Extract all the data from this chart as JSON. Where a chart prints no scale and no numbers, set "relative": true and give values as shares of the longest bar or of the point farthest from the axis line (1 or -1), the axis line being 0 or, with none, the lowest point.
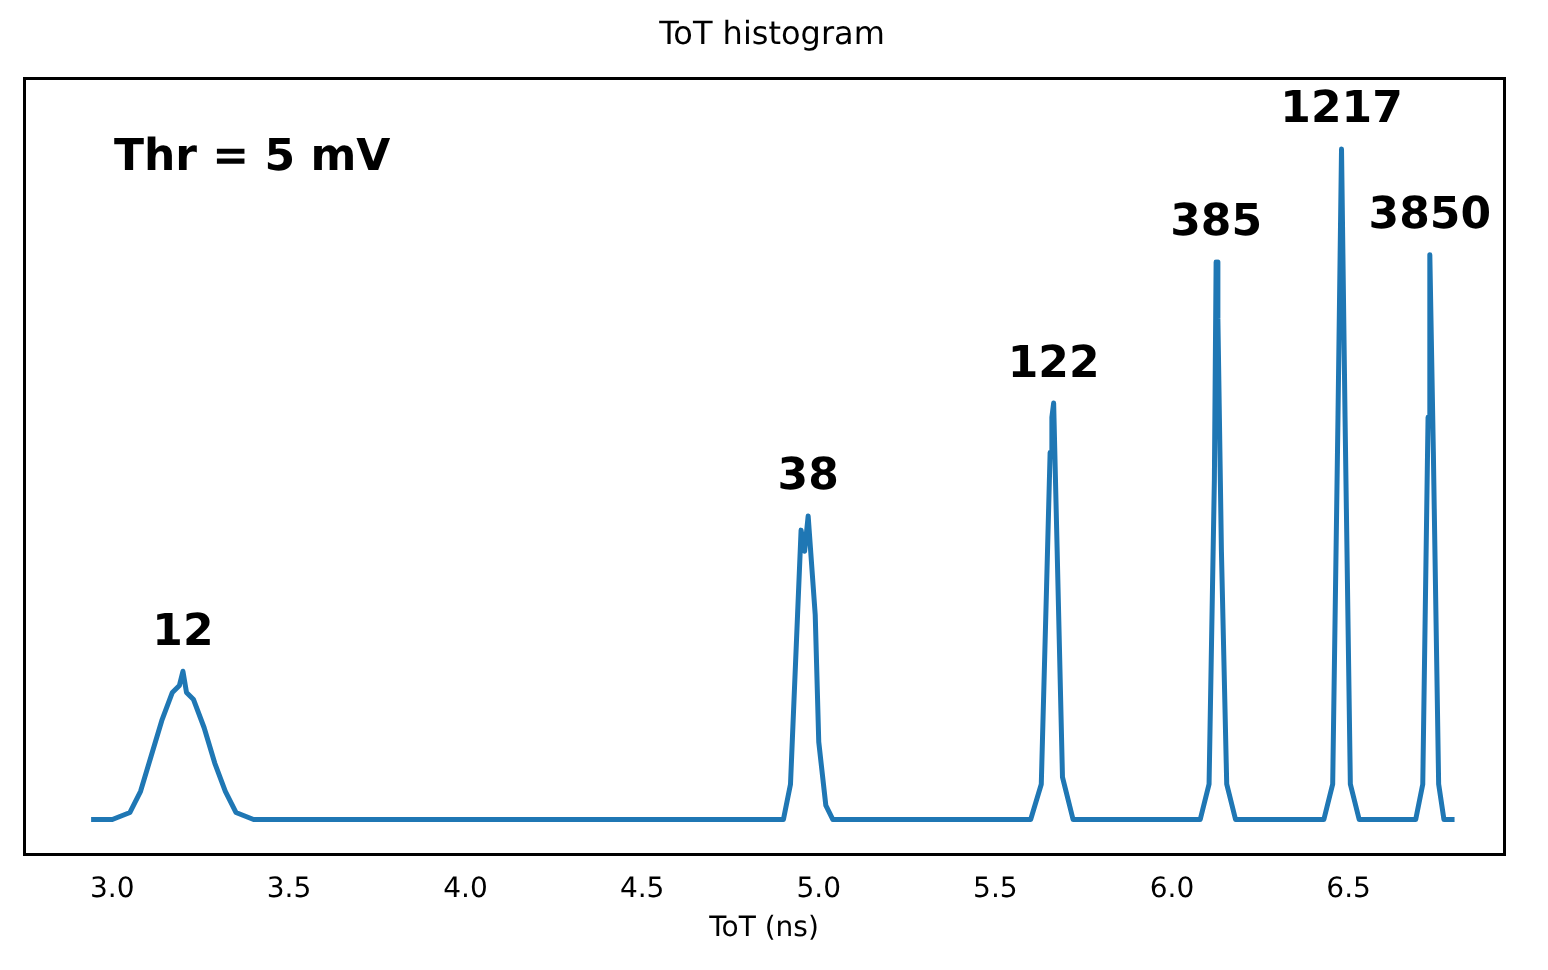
{
  "chart_data": {
    "type": "line",
    "title": "ToT histogram",
    "xlabel": "ToT (ns)",
    "relative": true,
    "color": "#1f77b4",
    "marker": "none",
    "grid": false,
    "legend": false,
    "x": [
      2.94,
      3.0,
      3.05,
      3.08,
      3.11,
      3.14,
      3.17,
      3.19,
      3.2,
      3.21,
      3.23,
      3.26,
      3.29,
      3.32,
      3.35,
      3.4,
      4.9,
      4.92,
      4.94,
      4.95,
      4.96,
      4.97,
      4.98,
      4.99,
      5.0,
      5.02,
      5.04,
      5.6,
      5.63,
      5.645,
      5.655,
      5.66,
      5.665,
      5.675,
      5.69,
      5.72,
      6.08,
      6.105,
      6.12,
      6.125,
      6.13,
      6.14,
      6.155,
      6.18,
      6.43,
      6.455,
      6.47,
      6.48,
      6.49,
      6.505,
      6.53,
      6.69,
      6.71,
      6.725,
      6.73,
      6.74,
      6.755,
      6.77,
      6.8
    ],
    "values": [
      0.05,
      0.05,
      0.06,
      0.09,
      0.14,
      0.19,
      0.23,
      0.24,
      0.26,
      0.23,
      0.22,
      0.18,
      0.13,
      0.09,
      0.06,
      0.05,
      0.05,
      0.1,
      0.34,
      0.46,
      0.43,
      0.48,
      0.41,
      0.34,
      0.16,
      0.07,
      0.05,
      0.05,
      0.1,
      0.38,
      0.57,
      0.62,
      0.64,
      0.43,
      0.11,
      0.05,
      0.05,
      0.1,
      0.53,
      0.84,
      0.76,
      0.43,
      0.1,
      0.05,
      0.05,
      0.1,
      0.62,
      1,
      0.62,
      0.1,
      0.05,
      0.05,
      0.1,
      0.62,
      0.85,
      0.57,
      0.1,
      0.05,
      0.05
    ],
    "xlim": [
      2.75,
      6.94
    ],
    "xticks": [
      {
        "value": 3,
        "label": "3.0"
      },
      {
        "value": 3.5,
        "label": "3.5"
      },
      {
        "value": 4,
        "label": "4.0"
      },
      {
        "value": 4.5,
        "label": "4.5"
      },
      {
        "value": 5,
        "label": "5.0"
      },
      {
        "value": 5.5,
        "label": "5.5"
      },
      {
        "value": 6,
        "label": "6.0"
      },
      {
        "value": 6.5,
        "label": "6.5"
      }
    ],
    "annotations": [
      "Thr = 5 mV",
      {
        "text": "12",
        "x": 3.2,
        "y": 0.26
      },
      {
        "text": "38",
        "x": 4.97,
        "y": 0.48
      },
      {
        "text": "122",
        "x": 5.665,
        "y": 0.64
      },
      {
        "text": "385",
        "x": 6.125,
        "y": 0.84
      },
      {
        "text": "1217",
        "x": 6.48,
        "y": 1
      },
      {
        "text": "3850",
        "x": 6.73,
        "y": 0.85
      }
    ]
  }
}
